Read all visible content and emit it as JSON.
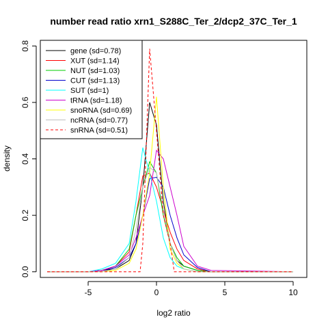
{
  "chart_data": {
    "type": "line",
    "title": "number read ratio xrn1_S288C_Ter_2/dcp2_37C_Ter_1",
    "xlabel": "log2 ratio",
    "ylabel": "density",
    "xlim": [
      -8.5,
      11
    ],
    "ylim": [
      -0.02,
      0.82
    ],
    "x_ticks": [
      -5,
      0,
      5,
      10
    ],
    "y_ticks": [
      0.0,
      0.2,
      0.4,
      0.6,
      0.8
    ],
    "x_tick_labels": [
      "-5",
      "0",
      "5",
      "10"
    ],
    "y_tick_labels": [
      "0.0",
      "0.2",
      "0.4",
      "0.6",
      "0.8"
    ],
    "grid": false,
    "legend_position": "top-left",
    "series": [
      {
        "name": "gene (sd=0.78)",
        "color": "#000000",
        "dash": false,
        "x": [
          -8,
          -5,
          -4,
          -3,
          -2,
          -1.5,
          -1,
          -0.5,
          0,
          0.5,
          1,
          1.5,
          2,
          3,
          4,
          10
        ],
        "y": [
          0,
          0,
          0.005,
          0.01,
          0.04,
          0.1,
          0.3,
          0.6,
          0.52,
          0.25,
          0.1,
          0.04,
          0.02,
          0.005,
          0,
          0
        ]
      },
      {
        "name": "XUT (sd=1.14)",
        "color": "#ff0000",
        "dash": false,
        "x": [
          -8,
          -5,
          -4,
          -3,
          -2,
          -1.5,
          -1,
          -0.5,
          0,
          0.5,
          1,
          1.5,
          2,
          3,
          4,
          10
        ],
        "y": [
          0,
          0,
          0.005,
          0.02,
          0.07,
          0.2,
          0.34,
          0.35,
          0.3,
          0.22,
          0.14,
          0.08,
          0.04,
          0.01,
          0,
          0
        ]
      },
      {
        "name": "NUT (sd=1.03)",
        "color": "#00cc00",
        "dash": false,
        "x": [
          -8,
          -5,
          -4,
          -3,
          -2,
          -1.5,
          -1,
          -0.5,
          0,
          0.5,
          1,
          1.5,
          2,
          3,
          4,
          10
        ],
        "y": [
          0,
          0,
          0.005,
          0.02,
          0.08,
          0.2,
          0.3,
          0.39,
          0.35,
          0.2,
          0.1,
          0.05,
          0.02,
          0.005,
          0,
          0
        ]
      },
      {
        "name": "CUT (sd=1.13)",
        "color": "#0000cc",
        "dash": false,
        "x": [
          -8,
          -5,
          -4,
          -3,
          -2,
          -1.5,
          -1,
          -0.5,
          0,
          0.5,
          1,
          1.5,
          2,
          3,
          4,
          10
        ],
        "y": [
          0,
          0,
          0.005,
          0.015,
          0.05,
          0.1,
          0.2,
          0.33,
          0.335,
          0.3,
          0.2,
          0.12,
          0.06,
          0.015,
          0,
          0
        ]
      },
      {
        "name": "SUT (sd=1)",
        "color": "#00ffff",
        "dash": false,
        "x": [
          -8,
          -5,
          -4,
          -3,
          -2,
          -1.5,
          -1,
          -0.5,
          0,
          0.5,
          1,
          1.5,
          2,
          3,
          4,
          10
        ],
        "y": [
          0,
          0,
          0.01,
          0.03,
          0.1,
          0.25,
          0.44,
          0.35,
          0.25,
          0.12,
          0.05,
          0.02,
          0.01,
          0,
          0,
          0
        ]
      },
      {
        "name": "tRNA (sd=1.18)",
        "color": "#cc00cc",
        "dash": false,
        "x": [
          -8,
          -5,
          -4,
          -3,
          -2,
          -1.5,
          -1,
          -0.5,
          0,
          0.5,
          1,
          1.5,
          2,
          3,
          4,
          10
        ],
        "y": [
          0,
          0,
          0.005,
          0.02,
          0.06,
          0.12,
          0.2,
          0.27,
          0.43,
          0.4,
          0.3,
          0.2,
          0.09,
          0.02,
          0.005,
          0
        ]
      },
      {
        "name": "snoRNA (sd=0.69)",
        "color": "#ffff00",
        "dash": false,
        "x": [
          -8,
          -5,
          -4,
          -3,
          -2,
          -1.5,
          -1,
          -0.5,
          0,
          0.5,
          1,
          1.5,
          2,
          3,
          4,
          10
        ],
        "y": [
          0,
          0,
          0,
          0.005,
          0.03,
          0.08,
          0.2,
          0.35,
          0.62,
          0.3,
          0.08,
          0.03,
          0.01,
          0,
          0,
          0
        ]
      },
      {
        "name": "ncRNA (sd=0.77)",
        "color": "#bebebe",
        "dash": false,
        "x": [
          -8,
          -5,
          -4,
          -3,
          -2,
          -1.5,
          -1,
          -0.5,
          0,
          0.5,
          1,
          1.5,
          2,
          3,
          4,
          10
        ],
        "y": [
          0,
          0,
          0,
          0.01,
          0.05,
          0.15,
          0.3,
          0.37,
          0.35,
          0.22,
          0.1,
          0.04,
          0.01,
          0,
          0,
          0
        ]
      },
      {
        "name": "snRNA (sd=0.51)",
        "color": "#ff0000",
        "dash": true,
        "x": [
          -8,
          -1.2,
          -1,
          -0.5,
          0,
          0.5,
          1,
          1.3,
          10
        ],
        "y": [
          0,
          0,
          0.1,
          0.79,
          0.5,
          0.2,
          0.1,
          0,
          0
        ]
      }
    ]
  }
}
